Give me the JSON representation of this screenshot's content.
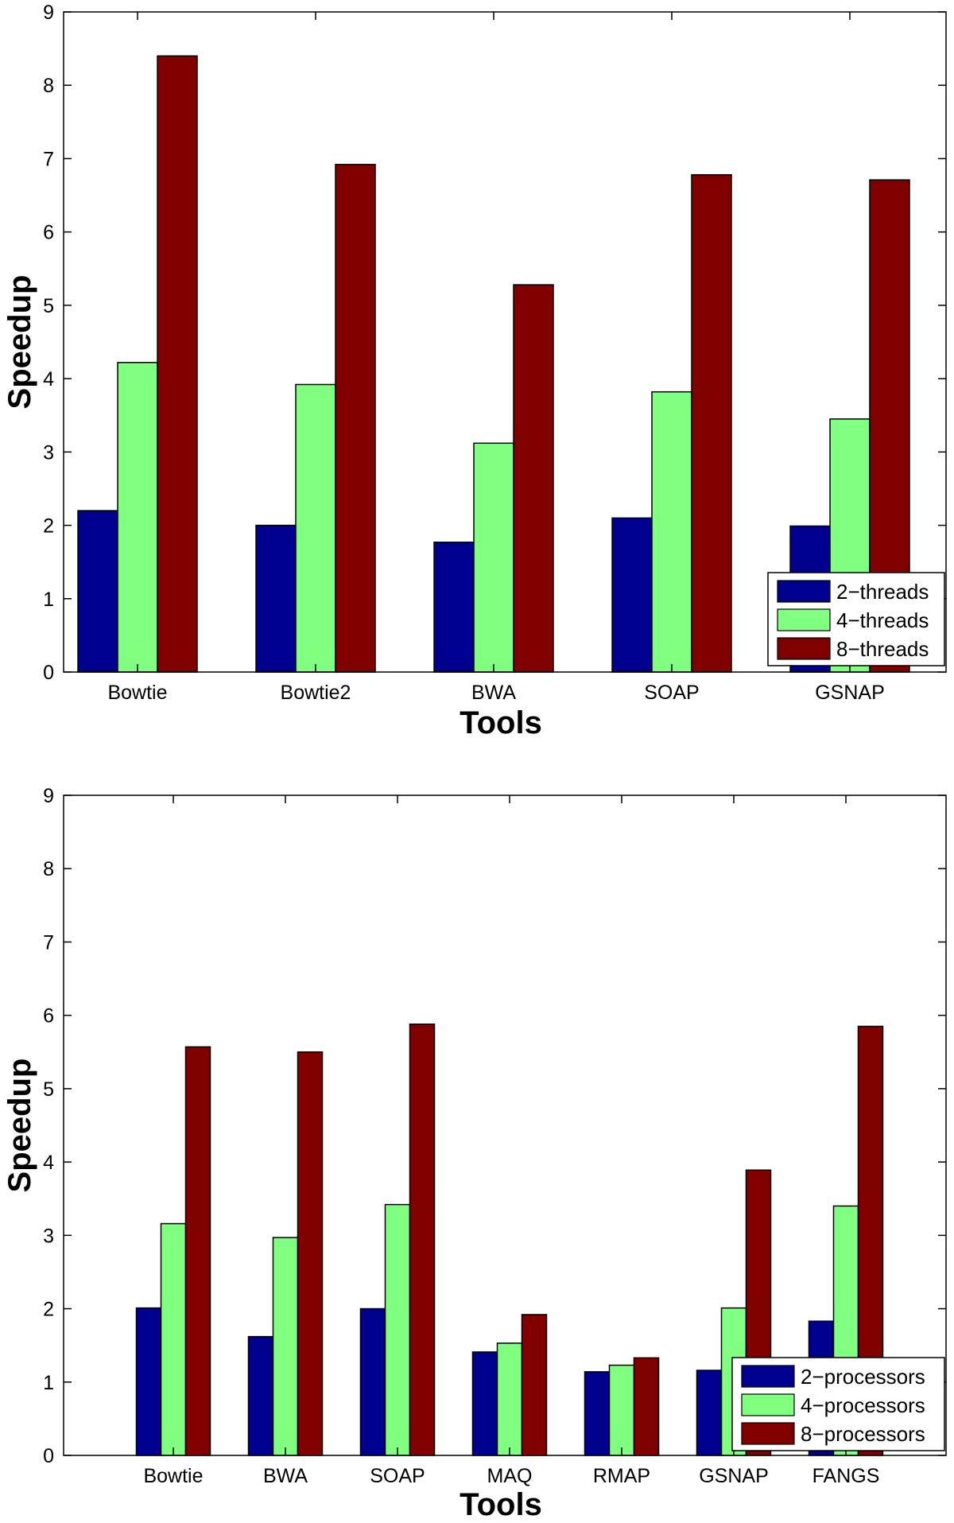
{
  "chart_data": [
    {
      "type": "bar",
      "title": "",
      "xlabel": "Tools",
      "ylabel": "Speedup",
      "ylim": [
        0,
        9
      ],
      "yticks": [
        "0",
        "1",
        "2",
        "3",
        "4",
        "5",
        "6",
        "7",
        "8",
        "9"
      ],
      "categories": [
        "Bowtie",
        "Bowtie2",
        "BWA",
        "SOAP",
        "GSNAP"
      ],
      "series": [
        {
          "name": "2−threads",
          "color": "#00008f",
          "values": [
            2.2,
            2.0,
            1.77,
            2.1,
            1.99
          ]
        },
        {
          "name": "4−threads",
          "color": "#80ff80",
          "values": [
            4.22,
            3.92,
            3.12,
            3.82,
            3.45
          ]
        },
        {
          "name": "8−threads",
          "color": "#800000",
          "values": [
            8.4,
            6.92,
            5.28,
            6.78,
            6.71
          ]
        }
      ],
      "legend_position": "bottom-right",
      "grid": false
    },
    {
      "type": "bar",
      "title": "",
      "xlabel": "Tools",
      "ylabel": "Speedup",
      "ylim": [
        0,
        9
      ],
      "yticks": [
        "0",
        "1",
        "2",
        "3",
        "4",
        "5",
        "6",
        "7",
        "8",
        "9"
      ],
      "categories": [
        "Bowtie",
        "BWA",
        "SOAP",
        "MAQ",
        "RMAP",
        "GSNAP",
        "FANGS"
      ],
      "series": [
        {
          "name": "2−processors",
          "color": "#00008f",
          "values": [
            2.01,
            1.62,
            2.0,
            1.41,
            1.14,
            1.16,
            1.83
          ]
        },
        {
          "name": "4−processors",
          "color": "#80ff80",
          "values": [
            3.16,
            2.97,
            3.42,
            1.53,
            1.23,
            2.01,
            3.4
          ]
        },
        {
          "name": "8−processors",
          "color": "#800000",
          "values": [
            5.57,
            5.5,
            5.88,
            1.92,
            1.33,
            3.89,
            5.85
          ]
        }
      ],
      "legend_position": "bottom-right",
      "grid": false
    }
  ]
}
